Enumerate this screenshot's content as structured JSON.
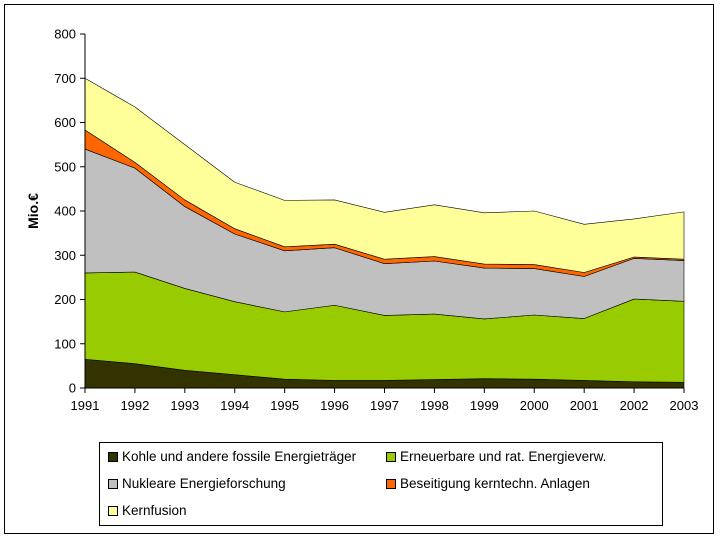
{
  "chart_data": {
    "type": "area",
    "stacked": true,
    "title": "",
    "xlabel": "",
    "ylabel": "Mio.€",
    "ylim": [
      0,
      800
    ],
    "yticks": [
      "0",
      "100",
      "200",
      "300",
      "400",
      "500",
      "600",
      "700",
      "800"
    ],
    "grid": false,
    "legend_position": "bottom",
    "x": [
      "1991",
      "1992",
      "1993",
      "1994",
      "1995",
      "1996",
      "1997",
      "1998",
      "1999",
      "2000",
      "2001",
      "2002",
      "2003"
    ],
    "series": [
      {
        "name": "Kohle und andere fossile Energieträger",
        "color": "#333300",
        "values": [
          65,
          55,
          40,
          30,
          20,
          17,
          17,
          19,
          21,
          20,
          17,
          14,
          13
        ]
      },
      {
        "name": "Erneuerbare und rat. Energieverw.",
        "color": "#99cc00",
        "values": [
          195,
          207,
          185,
          165,
          152,
          170,
          147,
          148,
          135,
          145,
          140,
          187,
          183
        ]
      },
      {
        "name": "Nukleare Energieforschung",
        "color": "#c0c0c0",
        "values": [
          280,
          235,
          185,
          153,
          138,
          130,
          117,
          120,
          115,
          105,
          95,
          92,
          92
        ]
      },
      {
        "name": "Beseitigung kerntechn. Anlagen",
        "color": "#ff6600",
        "values": [
          43,
          13,
          15,
          12,
          9,
          8,
          10,
          10,
          9,
          9,
          9,
          3,
          3
        ]
      },
      {
        "name": "Kernfusion",
        "color": "#ffff99",
        "values": [
          117,
          125,
          125,
          105,
          105,
          100,
          106,
          117,
          116,
          121,
          109,
          86,
          107
        ]
      }
    ]
  }
}
